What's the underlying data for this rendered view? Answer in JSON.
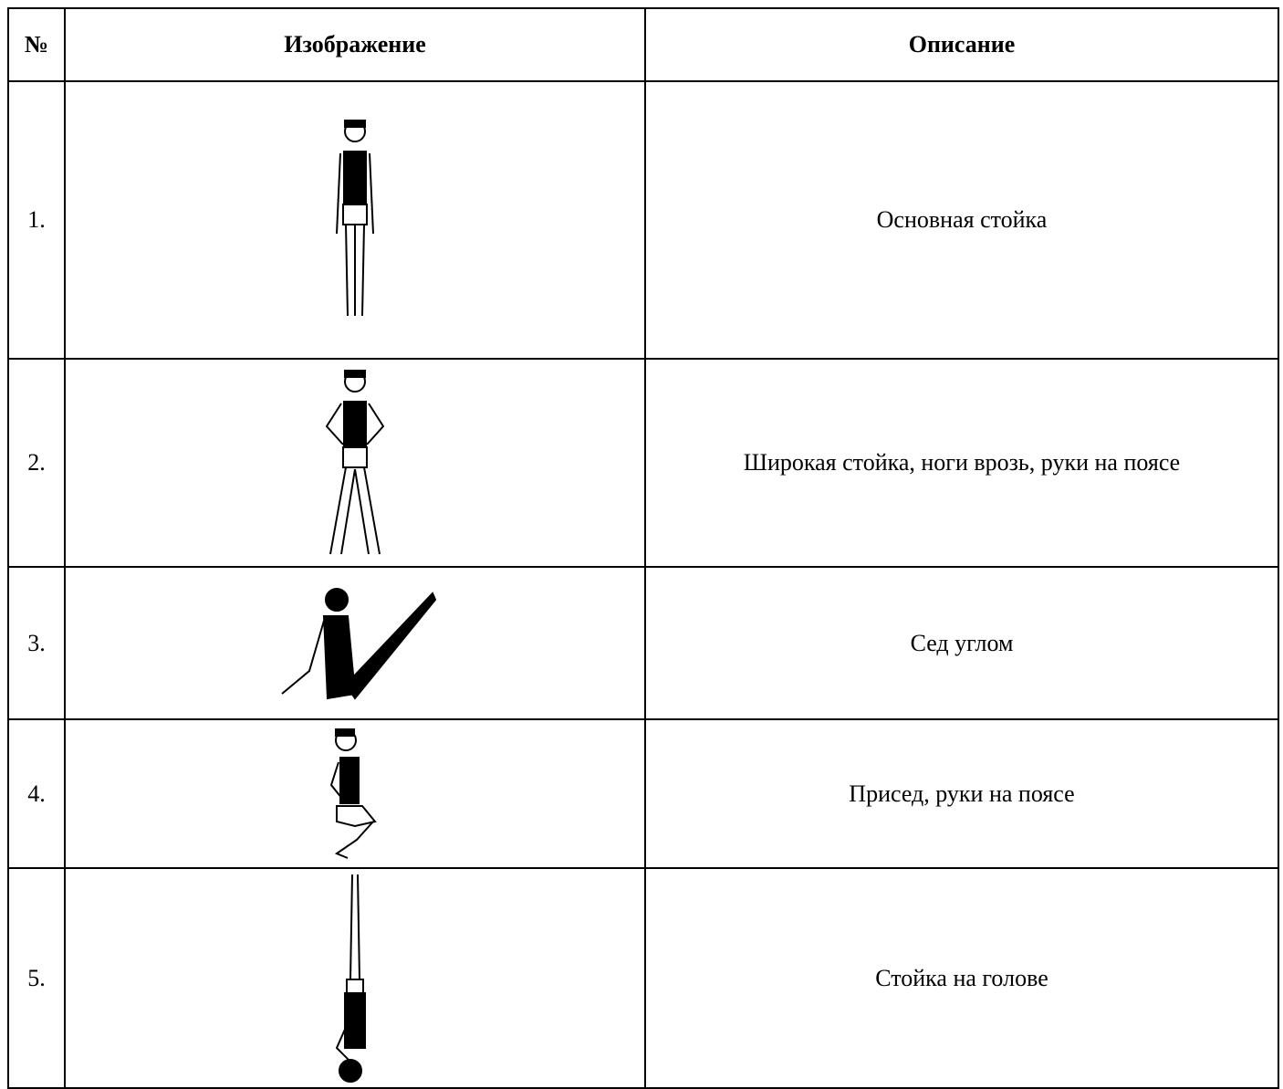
{
  "table": {
    "header": [
      "№",
      "Изображение",
      "Описание"
    ],
    "rows": [
      [
        "1.",
        "Основная стойка"
      ],
      [
        "2.",
        "Широкая стойка, ноги врозь, руки на поясе"
      ],
      [
        "3.",
        "Сед углом"
      ],
      [
        "4.",
        "Присед, руки на поясе"
      ],
      [
        "5.",
        "Стойка на голове"
      ]
    ]
  }
}
